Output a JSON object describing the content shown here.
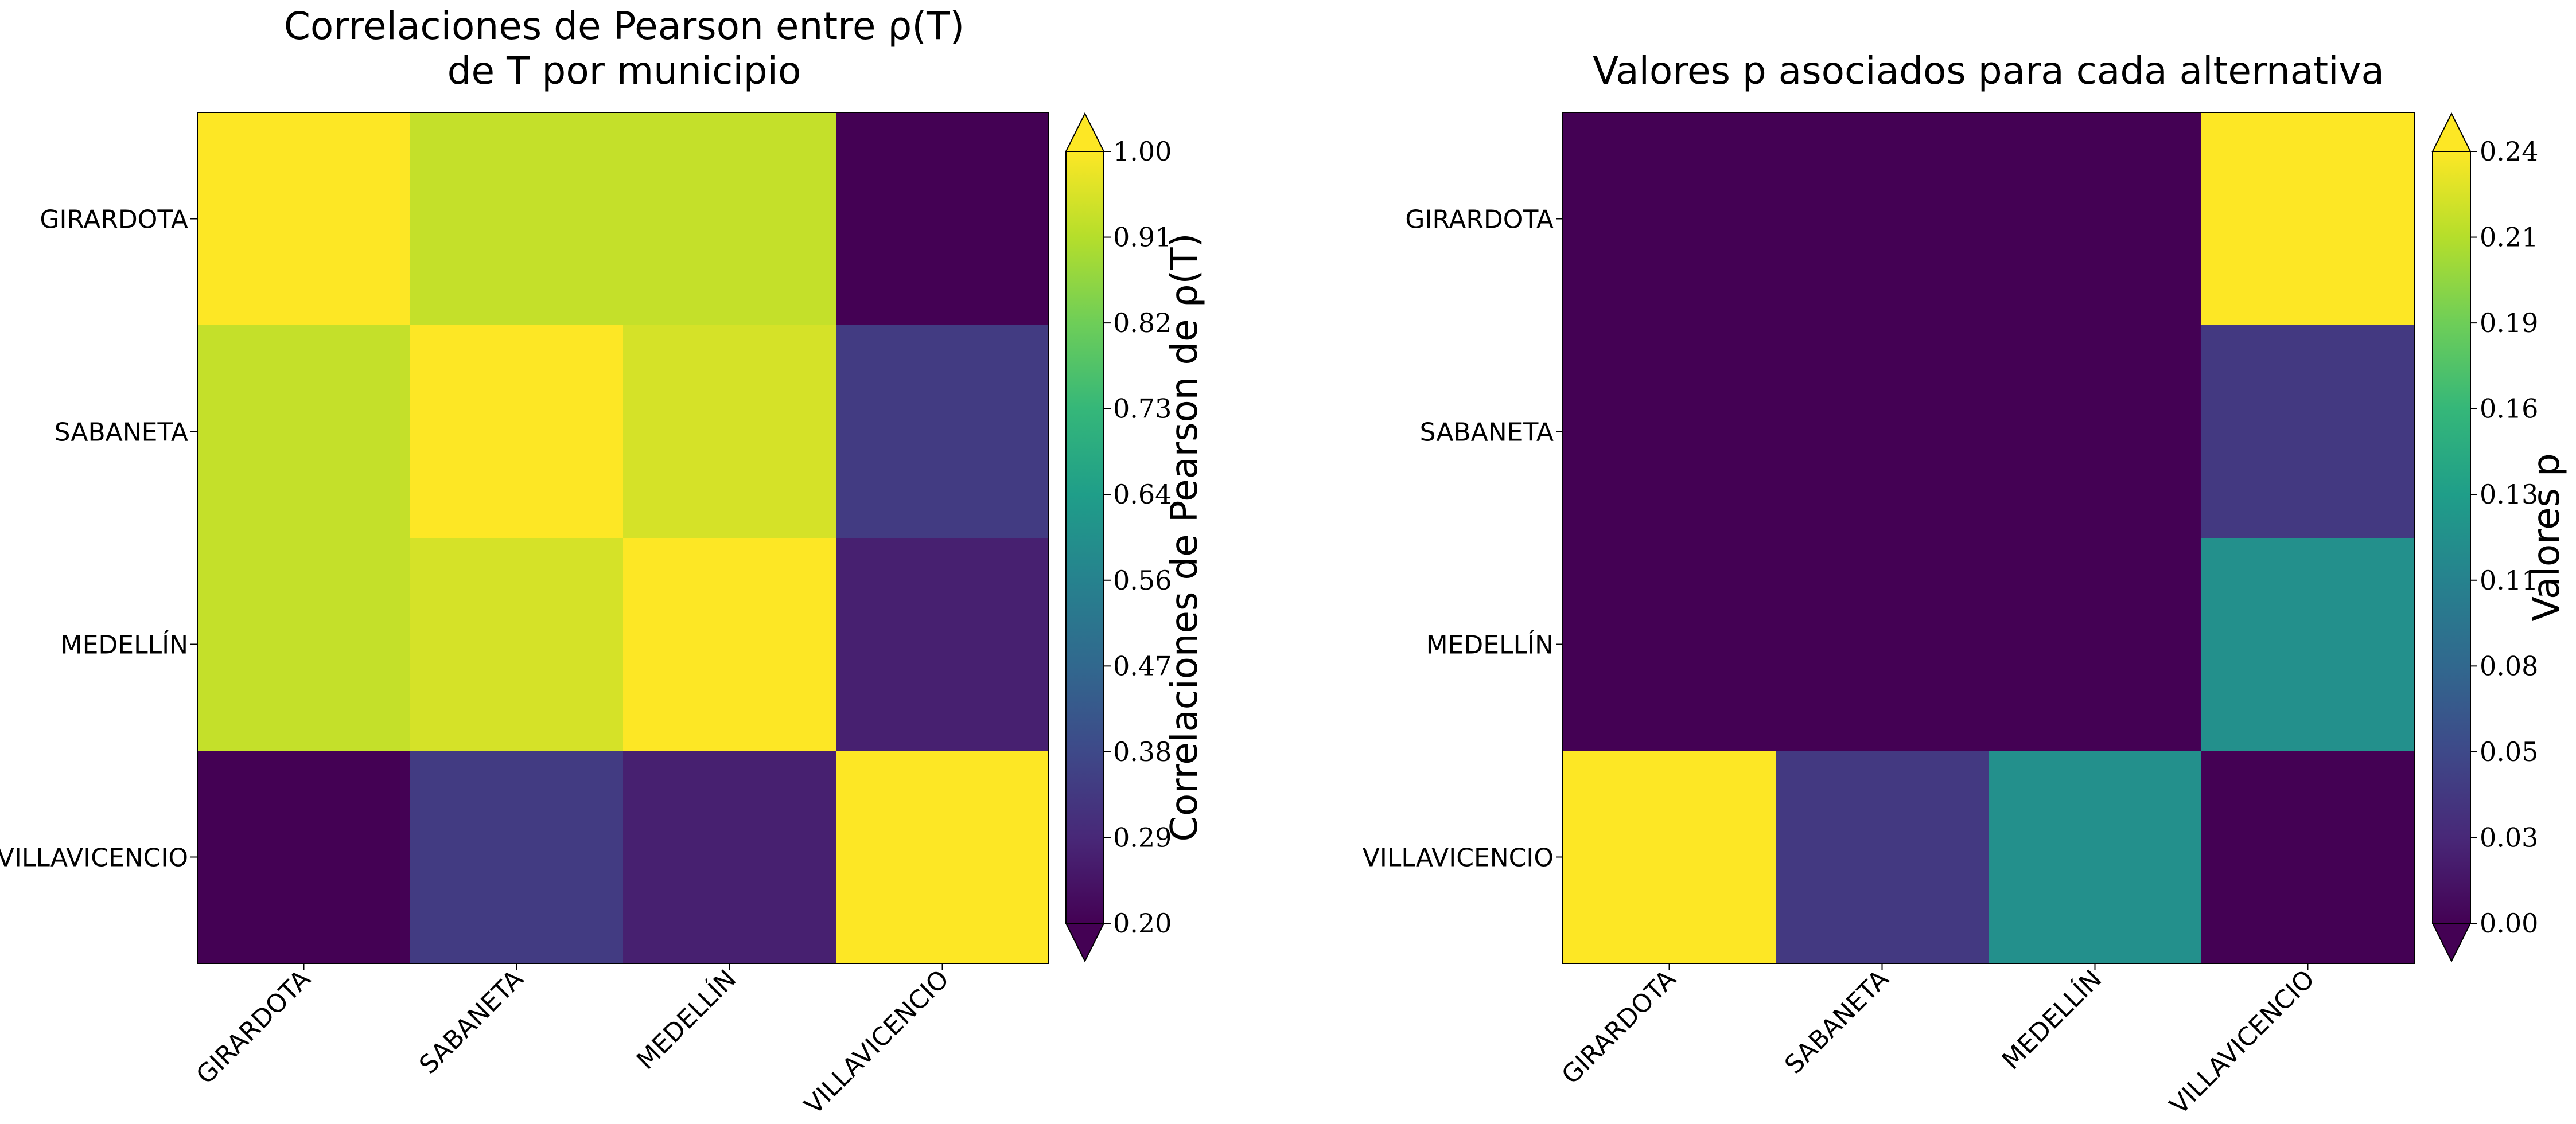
{
  "chart_data": [
    {
      "type": "heatmap",
      "title": "Correlaciones de Pearson entre ρ(T) de T por municipio",
      "title_lines": [
        "Correlaciones de Pearson entre ρ(T)",
        "de T por municipio"
      ],
      "rows": [
        "GIRARDOTA",
        "SABANETA",
        "MEDELLÍN",
        "VILLAVICENCIO"
      ],
      "cols": [
        "GIRARDOTA",
        "SABANETA",
        "MEDELLÍN",
        "VILLAVICENCIO"
      ],
      "values": [
        [
          1.0,
          0.93,
          0.93,
          0.2
        ],
        [
          0.93,
          1.0,
          0.95,
          0.34
        ],
        [
          0.93,
          0.95,
          1.0,
          0.27
        ],
        [
          0.2,
          0.34,
          0.27,
          1.0
        ]
      ],
      "colorbar": {
        "label": "Correlaciones de Pearson de ρ(T)",
        "range": [
          0.2,
          1.0
        ],
        "ticks": [
          "1.00",
          "0.91",
          "0.82",
          "0.73",
          "0.64",
          "0.56",
          "0.47",
          "0.38",
          "0.29",
          "0.20"
        ],
        "extend": "both"
      },
      "colormap": "viridis"
    },
    {
      "type": "heatmap",
      "title": "Valores p asociados para cada alternativa",
      "title_lines": [
        "Valores p asociados para cada alternativa"
      ],
      "rows": [
        "GIRARDOTA",
        "SABANETA",
        "MEDELLÍN",
        "VILLAVICENCIO"
      ],
      "cols": [
        "GIRARDOTA",
        "SABANETA",
        "MEDELLÍN",
        "VILLAVICENCIO"
      ],
      "values": [
        [
          0.0,
          0.0,
          0.0,
          0.24
        ],
        [
          0.0,
          0.0,
          0.0,
          0.04
        ],
        [
          0.0,
          0.0,
          0.0,
          0.12
        ],
        [
          0.24,
          0.04,
          0.12,
          0.0
        ]
      ],
      "colorbar": {
        "label": "Valores p",
        "range": [
          0.0,
          0.24
        ],
        "ticks": [
          "0.24",
          "0.21",
          "0.19",
          "0.16",
          "0.13",
          "0.11",
          "0.08",
          "0.05",
          "0.03",
          "0.00"
        ],
        "extend": "both"
      },
      "colormap": "viridis"
    }
  ]
}
